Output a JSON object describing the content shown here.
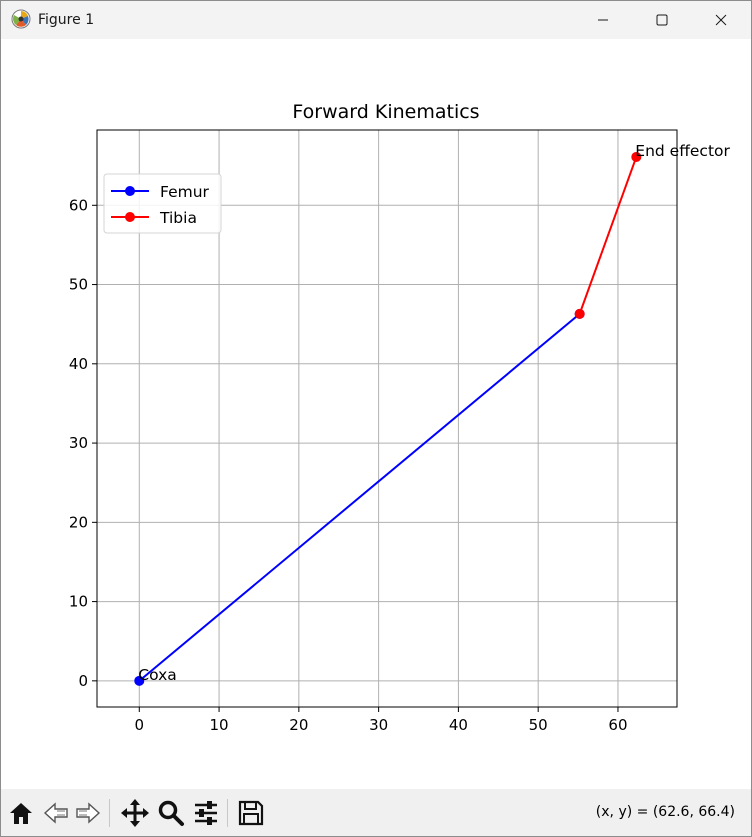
{
  "window": {
    "title": "Figure 1"
  },
  "toolbar": {
    "buttons": [
      {
        "name": "home-icon"
      },
      {
        "name": "back-icon"
      },
      {
        "name": "forward-icon"
      },
      {
        "name": "pan-icon"
      },
      {
        "name": "zoom-icon"
      },
      {
        "name": "configure-subplots-icon"
      },
      {
        "name": "save-icon"
      }
    ],
    "coords": "(x, y) = (62.6, 66.4)"
  },
  "chart_data": {
    "type": "line",
    "title": "Forward Kinematics",
    "xlabel": "",
    "ylabel": "",
    "xlim": [
      -5.3,
      67.4
    ],
    "ylim": [
      -3.3,
      69.5
    ],
    "xticks": [
      0,
      10,
      20,
      30,
      40,
      50,
      60
    ],
    "yticks": [
      0,
      10,
      20,
      30,
      40,
      50,
      60
    ],
    "grid": true,
    "legend": "top-left",
    "series": [
      {
        "name": "Femur",
        "color": "#0000ff",
        "x": [
          0,
          55.2
        ],
        "y": [
          0,
          46.3
        ]
      },
      {
        "name": "Tibia",
        "color": "#ff0000",
        "x": [
          55.2,
          62.3
        ],
        "y": [
          46.3,
          66.1
        ]
      }
    ],
    "annotations": [
      {
        "text": "Coxa",
        "x": 0,
        "y": 0
      },
      {
        "text": "End effector",
        "x": 62.3,
        "y": 66.1
      }
    ]
  }
}
